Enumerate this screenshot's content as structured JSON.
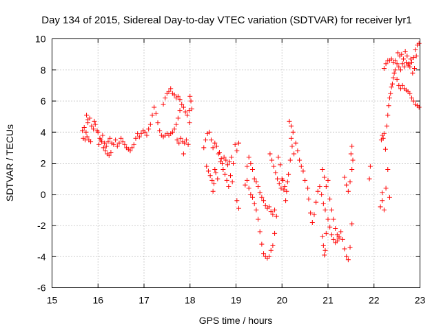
{
  "chart_data": {
    "type": "scatter",
    "title": "Day 134 of 2015, Sidereal Day-to-day VTEC variation (SDTVAR) for receiver lyr1",
    "xlabel": "GPS time / hours",
    "ylabel": "SDTVAR / TECUs",
    "xlim": [
      15,
      23
    ],
    "ylim": [
      -6,
      10
    ],
    "xticks": [
      "15",
      "16",
      "17",
      "18",
      "19",
      "20",
      "21",
      "22",
      "23"
    ],
    "yticks": [
      "-6",
      "-4",
      "-2",
      "0",
      "2",
      "4",
      "6",
      "8",
      "10"
    ],
    "grid": true,
    "marker": "+",
    "color": "#ff0000",
    "series": [
      {
        "name": "lyr1",
        "points": [
          [
            15.68,
            3.6
          ],
          [
            15.72,
            3.5
          ],
          [
            15.76,
            3.7
          ],
          [
            15.8,
            3.5
          ],
          [
            15.84,
            3.4
          ],
          [
            15.66,
            4.1
          ],
          [
            15.7,
            4.3
          ],
          [
            15.74,
            4.0
          ],
          [
            15.78,
            4.6
          ],
          [
            15.82,
            4.9
          ],
          [
            15.86,
            4.4
          ],
          [
            15.9,
            4.2
          ],
          [
            15.94,
            4.5
          ],
          [
            15.98,
            4.1
          ],
          [
            15.75,
            5.1
          ],
          [
            15.78,
            4.8
          ],
          [
            15.92,
            4.7
          ],
          [
            16.0,
            4.0
          ],
          [
            16.04,
            3.6
          ],
          [
            16.08,
            3.4
          ],
          [
            16.12,
            3.0
          ],
          [
            16.16,
            2.8
          ],
          [
            16.2,
            2.6
          ],
          [
            16.24,
            2.5
          ],
          [
            16.28,
            2.7
          ],
          [
            16.02,
            3.2
          ],
          [
            16.06,
            3.5
          ],
          [
            16.1,
            3.8
          ],
          [
            16.14,
            3.3
          ],
          [
            16.18,
            3.1
          ],
          [
            16.22,
            3.4
          ],
          [
            16.26,
            3.6
          ],
          [
            16.3,
            3.3
          ],
          [
            16.34,
            3.2
          ],
          [
            16.38,
            3.5
          ],
          [
            16.42,
            3.1
          ],
          [
            16.46,
            3.3
          ],
          [
            16.5,
            3.6
          ],
          [
            16.54,
            3.4
          ],
          [
            16.58,
            3.2
          ],
          [
            16.62,
            3.0
          ],
          [
            16.66,
            2.9
          ],
          [
            16.7,
            2.8
          ],
          [
            16.74,
            3.0
          ],
          [
            16.78,
            3.2
          ],
          [
            16.82,
            3.6
          ],
          [
            16.86,
            3.9
          ],
          [
            16.9,
            3.7
          ],
          [
            16.94,
            3.9
          ],
          [
            16.98,
            4.1
          ],
          [
            17.02,
            4.0
          ],
          [
            17.06,
            3.8
          ],
          [
            17.1,
            4.2
          ],
          [
            17.14,
            4.5
          ],
          [
            17.18,
            5.1
          ],
          [
            17.22,
            5.6
          ],
          [
            17.26,
            5.2
          ],
          [
            17.3,
            4.6
          ],
          [
            17.34,
            4.1
          ],
          [
            17.38,
            3.8
          ],
          [
            17.42,
            3.7
          ],
          [
            17.46,
            3.8
          ],
          [
            17.5,
            3.9
          ],
          [
            17.54,
            3.8
          ],
          [
            17.58,
            3.9
          ],
          [
            17.62,
            4.0
          ],
          [
            17.66,
            4.2
          ],
          [
            17.7,
            4.5
          ],
          [
            17.74,
            4.9
          ],
          [
            17.78,
            5.4
          ],
          [
            17.82,
            5.8
          ],
          [
            17.86,
            5.6
          ],
          [
            17.9,
            5.3
          ],
          [
            17.94,
            5.1
          ],
          [
            17.98,
            5.4
          ],
          [
            17.42,
            5.8
          ],
          [
            17.46,
            6.2
          ],
          [
            17.5,
            6.5
          ],
          [
            17.54,
            6.6
          ],
          [
            17.58,
            6.8
          ],
          [
            17.62,
            6.5
          ],
          [
            17.66,
            6.4
          ],
          [
            17.7,
            6.2
          ],
          [
            17.74,
            6.3
          ],
          [
            17.78,
            6.1
          ],
          [
            17.72,
            3.5
          ],
          [
            17.76,
            3.3
          ],
          [
            17.8,
            3.6
          ],
          [
            17.84,
            3.4
          ],
          [
            17.88,
            3.3
          ],
          [
            17.92,
            3.5
          ],
          [
            17.96,
            3.2
          ],
          [
            17.86,
            2.6
          ],
          [
            18.0,
            6.3
          ],
          [
            18.02,
            6.0
          ],
          [
            18.04,
            5.5
          ],
          [
            17.99,
            4.6
          ],
          [
            18.3,
            3.0
          ],
          [
            18.34,
            3.5
          ],
          [
            18.38,
            3.9
          ],
          [
            18.42,
            4.0
          ],
          [
            18.46,
            3.5
          ],
          [
            18.5,
            3.0
          ],
          [
            18.54,
            3.3
          ],
          [
            18.58,
            3.1
          ],
          [
            18.62,
            2.6
          ],
          [
            18.66,
            2.1
          ],
          [
            18.7,
            2.0
          ],
          [
            18.74,
            2.4
          ],
          [
            18.78,
            2.2
          ],
          [
            18.82,
            1.9
          ],
          [
            18.86,
            2.1
          ],
          [
            18.9,
            2.4
          ],
          [
            18.94,
            2.0
          ],
          [
            18.98,
            3.2
          ],
          [
            19.02,
            2.8
          ],
          [
            19.06,
            3.3
          ],
          [
            18.36,
            1.8
          ],
          [
            18.4,
            1.5
          ],
          [
            18.44,
            1.2
          ],
          [
            18.48,
            0.9
          ],
          [
            18.52,
            0.7
          ],
          [
            18.56,
            1.4
          ],
          [
            18.6,
            1.0
          ],
          [
            18.64,
            2.7
          ],
          [
            18.68,
            2.3
          ],
          [
            18.72,
            1.6
          ],
          [
            18.76,
            1.3
          ],
          [
            18.8,
            0.9
          ],
          [
            18.84,
            0.5
          ],
          [
            18.88,
            1.2
          ],
          [
            18.92,
            0.8
          ],
          [
            18.5,
            0.2
          ],
          [
            18.54,
            1.6
          ],
          [
            19.02,
            -0.4
          ],
          [
            19.06,
            -0.9
          ],
          [
            19.2,
            0.6
          ],
          [
            19.24,
            0.9
          ],
          [
            19.28,
            0.4
          ],
          [
            19.32,
            0.0
          ],
          [
            19.36,
            -0.2
          ],
          [
            19.4,
            -0.6
          ],
          [
            19.44,
            -1.0
          ],
          [
            19.48,
            -1.6
          ],
          [
            19.52,
            -2.4
          ],
          [
            19.56,
            -3.2
          ],
          [
            19.6,
            -3.8
          ],
          [
            19.64,
            -4.0
          ],
          [
            19.68,
            -4.1
          ],
          [
            19.72,
            -4.0
          ],
          [
            19.76,
            -3.6
          ],
          [
            19.8,
            -3.3
          ],
          [
            19.84,
            -2.5
          ],
          [
            19.24,
            1.8
          ],
          [
            19.28,
            2.4
          ],
          [
            19.32,
            2.0
          ],
          [
            19.36,
            1.6
          ],
          [
            19.4,
            1.0
          ],
          [
            19.44,
            0.8
          ],
          [
            19.48,
            0.5
          ],
          [
            19.52,
            0.1
          ],
          [
            19.56,
            -0.2
          ],
          [
            19.6,
            -0.4
          ],
          [
            19.64,
            -0.7
          ],
          [
            19.68,
            -0.9
          ],
          [
            19.72,
            -0.8
          ],
          [
            19.76,
            -1.1
          ],
          [
            19.8,
            -1.3
          ],
          [
            19.84,
            -1.0
          ],
          [
            19.88,
            -1.4
          ],
          [
            19.74,
            2.6
          ],
          [
            19.78,
            2.2
          ],
          [
            19.82,
            1.8
          ],
          [
            19.86,
            1.4
          ],
          [
            19.9,
            1.0
          ],
          [
            19.94,
            0.7
          ],
          [
            19.98,
            0.4
          ],
          [
            20.02,
            0.9
          ],
          [
            20.06,
            0.5
          ],
          [
            20.1,
            0.2
          ],
          [
            20.14,
            1.3
          ],
          [
            20.18,
            2.2
          ],
          [
            20.22,
            3.1
          ],
          [
            20.26,
            2.6
          ],
          [
            20.3,
            3.3
          ],
          [
            19.92,
            2.4
          ],
          [
            19.96,
            1.9
          ],
          [
            20.0,
            1.0
          ],
          [
            20.04,
            0.3
          ],
          [
            20.08,
            -0.4
          ],
          [
            20.12,
            0.8
          ],
          [
            20.16,
            4.7
          ],
          [
            20.2,
            4.4
          ],
          [
            20.24,
            4.0
          ],
          [
            20.2,
            3.6
          ],
          [
            20.34,
            2.8
          ],
          [
            20.38,
            2.2
          ],
          [
            20.42,
            1.8
          ],
          [
            20.46,
            1.5
          ],
          [
            20.5,
            0.9
          ],
          [
            20.56,
            0.4
          ],
          [
            20.58,
            -0.3
          ],
          [
            20.62,
            -1.2
          ],
          [
            20.66,
            -1.8
          ],
          [
            20.7,
            -1.3
          ],
          [
            20.74,
            -0.5
          ],
          [
            20.78,
            0.2
          ],
          [
            20.82,
            0.5
          ],
          [
            20.86,
            0.0
          ],
          [
            20.9,
            -0.6
          ],
          [
            20.94,
            -1.0
          ],
          [
            20.88,
            -2.7
          ],
          [
            20.9,
            -3.3
          ],
          [
            20.92,
            -3.9
          ],
          [
            20.94,
            -3.6
          ],
          [
            20.96,
            -2.5
          ],
          [
            21.0,
            -1.6
          ],
          [
            21.04,
            -2.1
          ],
          [
            21.08,
            -2.6
          ],
          [
            21.12,
            -2.9
          ],
          [
            21.16,
            -3.1
          ],
          [
            21.2,
            -3.0
          ],
          [
            21.24,
            -2.7
          ],
          [
            21.28,
            -2.4
          ],
          [
            21.32,
            -2.9
          ],
          [
            21.36,
            -3.5
          ],
          [
            21.4,
            -4.0
          ],
          [
            21.44,
            -4.2
          ],
          [
            21.48,
            -3.4
          ],
          [
            21.52,
            -1.9
          ],
          [
            20.88,
            1.6
          ],
          [
            20.92,
            1.1
          ],
          [
            20.96,
            0.5
          ],
          [
            21.0,
            0.9
          ],
          [
            21.04,
            -0.3
          ],
          [
            21.08,
            -1.0
          ],
          [
            21.12,
            -1.6
          ],
          [
            21.16,
            -2.2
          ],
          [
            21.2,
            -2.6
          ],
          [
            21.24,
            -2.8
          ],
          [
            21.36,
            1.1
          ],
          [
            21.4,
            0.6
          ],
          [
            21.44,
            0.2
          ],
          [
            21.48,
            0.8
          ],
          [
            21.52,
            1.6
          ],
          [
            21.54,
            2.2
          ],
          [
            21.52,
            3.1
          ],
          [
            21.5,
            2.6
          ],
          [
            21.9,
            1.0
          ],
          [
            21.92,
            1.8
          ],
          [
            22.16,
            3.5
          ],
          [
            22.18,
            3.8
          ],
          [
            22.2,
            3.6
          ],
          [
            22.22,
            3.9
          ],
          [
            22.25,
            2.9
          ],
          [
            22.28,
            4.4
          ],
          [
            22.3,
            5.1
          ],
          [
            22.32,
            5.7
          ],
          [
            22.34,
            6.2
          ],
          [
            22.36,
            6.5
          ],
          [
            22.38,
            6.9
          ],
          [
            22.4,
            7.1
          ],
          [
            22.42,
            7.5
          ],
          [
            22.44,
            7.8
          ],
          [
            22.46,
            8.0
          ],
          [
            22.22,
            8.1
          ],
          [
            22.26,
            8.4
          ],
          [
            22.3,
            8.6
          ],
          [
            22.34,
            8.6
          ],
          [
            22.38,
            8.7
          ],
          [
            22.42,
            8.5
          ],
          [
            22.46,
            8.6
          ],
          [
            22.5,
            8.4
          ],
          [
            22.54,
            8.2
          ],
          [
            22.58,
            8.0
          ],
          [
            22.62,
            8.4
          ],
          [
            22.66,
            8.2
          ],
          [
            22.7,
            8.5
          ],
          [
            22.74,
            8.3
          ],
          [
            22.78,
            8.2
          ],
          [
            22.82,
            8.5
          ],
          [
            22.86,
            8.8
          ],
          [
            22.9,
            9.3
          ],
          [
            22.94,
            9.6
          ],
          [
            22.98,
            9.7
          ],
          [
            22.5,
            7.4
          ],
          [
            22.54,
            7.0
          ],
          [
            22.58,
            6.8
          ],
          [
            22.62,
            7.0
          ],
          [
            22.66,
            6.8
          ],
          [
            22.7,
            6.7
          ],
          [
            22.74,
            6.6
          ],
          [
            22.78,
            6.5
          ],
          [
            22.82,
            6.2
          ],
          [
            22.86,
            6.0
          ],
          [
            22.9,
            5.8
          ],
          [
            22.94,
            5.7
          ],
          [
            22.98,
            5.6
          ],
          [
            22.14,
            -0.8
          ],
          [
            22.18,
            -0.4
          ],
          [
            22.22,
            -1.0
          ],
          [
            22.26,
            0.4
          ],
          [
            22.3,
            1.6
          ],
          [
            22.34,
            -0.2
          ],
          [
            22.18,
            0.1
          ],
          [
            22.52,
            9.1
          ],
          [
            22.56,
            8.9
          ],
          [
            22.6,
            9.0
          ],
          [
            22.64,
            8.7
          ],
          [
            22.68,
            9.2
          ],
          [
            22.72,
            8.9
          ],
          [
            22.76,
            8.4
          ],
          [
            22.8,
            8.7
          ],
          [
            22.84,
            7.8
          ],
          [
            22.88,
            8.1
          ],
          [
            22.92,
            8.9
          ]
        ]
      }
    ]
  }
}
